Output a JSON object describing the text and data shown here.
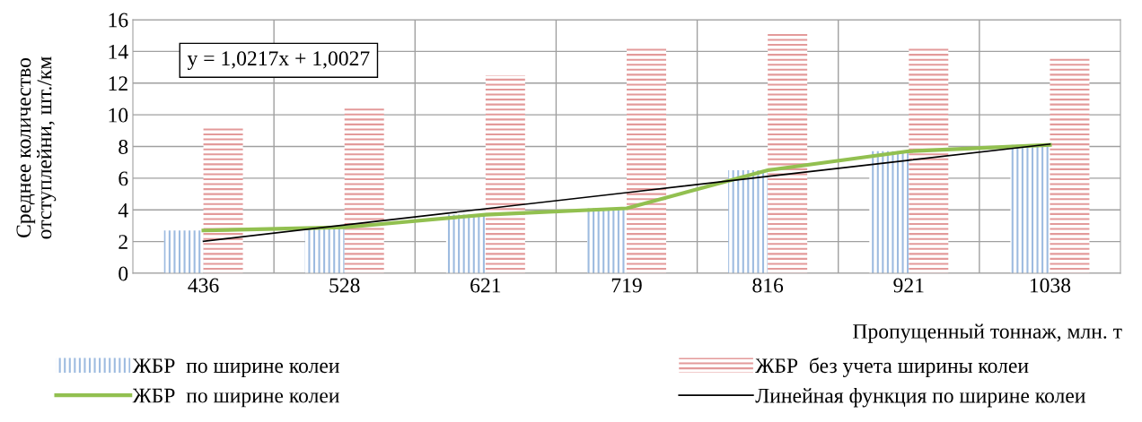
{
  "chart_data": {
    "type": "bar",
    "xlabel": "Пропущенный тоннаж, млн. т",
    "ylabel": "Среднее количество\nотступлейни, шт./км",
    "categories": [
      "436",
      "528",
      "621",
      "719",
      "816",
      "921",
      "1038"
    ],
    "series": [
      {
        "name": "ЖБР  по ширине колеи",
        "color": "#9dbbe0",
        "values": [
          2.7,
          2.9,
          3.7,
          4.1,
          6.5,
          7.7,
          8.1
        ]
      },
      {
        "name": "ЖБР  без учета ширины колеи",
        "color": "#e39a9a",
        "values": [
          9.2,
          10.4,
          12.5,
          14.2,
          15.1,
          14.3,
          13.6
        ]
      },
      {
        "name": "ЖБР  по ширине колеи",
        "type": "line",
        "color": "#92c050",
        "values": [
          2.7,
          2.9,
          3.7,
          4.1,
          6.5,
          7.7,
          8.1
        ]
      },
      {
        "name": "Линейная функция по ширине колеи",
        "type": "line",
        "color": "#000000",
        "values": [
          2.02,
          3.05,
          4.07,
          5.09,
          6.11,
          7.13,
          8.15
        ]
      }
    ],
    "ylim": [
      0,
      16
    ],
    "yticks": [
      0,
      2,
      4,
      6,
      8,
      10,
      12,
      14,
      16
    ],
    "grid": true,
    "legend": "bottom",
    "annotations": [
      "y = 1,0217x + 1,0027"
    ]
  }
}
